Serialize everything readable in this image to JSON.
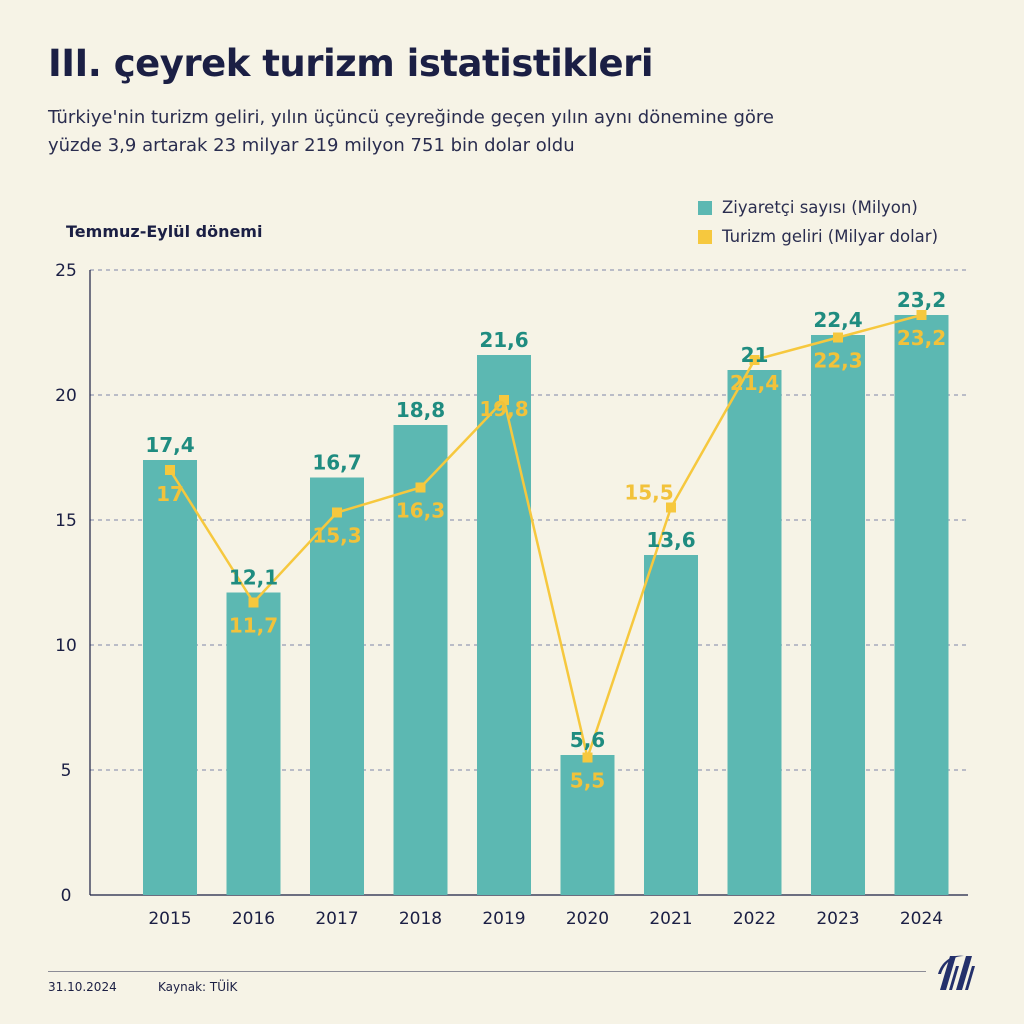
{
  "title": "III. çeyrek turizm istatistikleri",
  "subtitle_line1": "Türkiye'nin turizm geliri, yılın üçüncü çeyreğinde geçen yılın aynı dönemine göre",
  "subtitle_line2": "yüzde 3,9 artarak 23 milyar 219 milyon 751 bin dolar oldu",
  "period_label": "Temmuz-Eylül dönemi",
  "legend": {
    "visitors": "Ziyaretçi sayısı (Milyon)",
    "revenue": "Turizm geliri (Milyar dolar)"
  },
  "colors": {
    "bar": "#5cb8b2",
    "line": "#f6c83e",
    "bar_label": "#1f8c80",
    "line_label": "#f2c23a",
    "text": "#1b1f44",
    "grid": "#7f84a8"
  },
  "chart_data": {
    "type": "bar",
    "categories": [
      "2015",
      "2016",
      "2017",
      "2018",
      "2019",
      "2020",
      "2021",
      "2022",
      "2023",
      "2024"
    ],
    "series": [
      {
        "name": "Ziyaretçi sayısı (Milyon)",
        "type": "bar",
        "values": [
          17.4,
          12.1,
          16.7,
          18.8,
          21.6,
          5.6,
          13.6,
          21,
          22.4,
          23.2
        ],
        "labels": [
          "17,4",
          "12,1",
          "16,7",
          "18,8",
          "21,6",
          "5,6",
          "13,6",
          "21",
          "22,4",
          "23,2"
        ]
      },
      {
        "name": "Turizm geliri (Milyar dolar)",
        "type": "line",
        "values": [
          17,
          11.7,
          15.3,
          16.3,
          19.8,
          5.5,
          15.5,
          21.4,
          22.3,
          23.2
        ],
        "labels": [
          "17",
          "11,7",
          "15,3",
          "16,3",
          "19,8",
          "5,5",
          "15,5",
          "21,4",
          "22,3",
          "23,2"
        ]
      }
    ],
    "yticks": [
      "0",
      "5",
      "10",
      "15",
      "20",
      "25"
    ],
    "ylim": [
      0,
      25
    ],
    "grid": true,
    "legend_position": "top-right"
  },
  "footer": {
    "date": "31.10.2024",
    "source": "Kaynak: TÜİK"
  },
  "logo_text": "AA"
}
